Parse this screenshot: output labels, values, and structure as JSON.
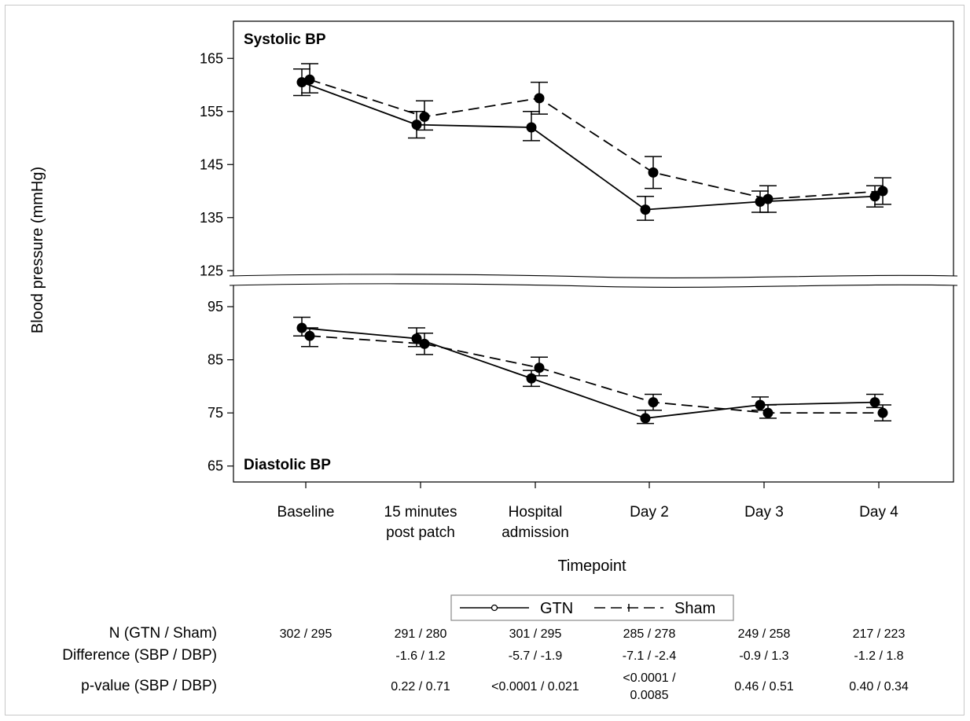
{
  "chart_data": {
    "type": "line",
    "x_title": "Timepoint",
    "y_title": "Blood pressure (mmHg)",
    "categories": [
      [
        "Baseline"
      ],
      [
        "15 minutes",
        "post patch"
      ],
      [
        "Hospital",
        "admission"
      ],
      [
        "Day 2"
      ],
      [
        "Day 3"
      ],
      [
        "Day 4"
      ]
    ],
    "panels": [
      {
        "title": "Systolic BP",
        "y_ticks": [
          125,
          135,
          145,
          155,
          165
        ],
        "ylim": [
          124,
          172
        ],
        "series": [
          {
            "name": "GTN",
            "style": "solid",
            "values": [
              160.5,
              152.5,
              152,
              136.5,
              138,
              139
            ],
            "lower": [
              158,
              150,
              149.5,
              134.5,
              136,
              137
            ],
            "upper": [
              163,
              155,
              155,
              139,
              140,
              141
            ]
          },
          {
            "name": "Sham",
            "style": "dashed",
            "values": [
              161,
              154,
              157.5,
              143.5,
              138.5,
              140
            ],
            "lower": [
              158.5,
              151.5,
              154.5,
              140.5,
              136,
              137.5
            ],
            "upper": [
              164,
              157,
              160.5,
              146.5,
              141,
              142.5
            ]
          }
        ]
      },
      {
        "title": "Diastolic BP",
        "y_ticks": [
          65,
          75,
          85,
          95
        ],
        "ylim": [
          62,
          99
        ],
        "series": [
          {
            "name": "GTN",
            "style": "solid",
            "values": [
              91,
              89,
              81.5,
              74,
              76.5,
              77
            ],
            "lower": [
              89.5,
              87.5,
              80,
              73,
              75.5,
              76
            ],
            "upper": [
              93,
              91,
              83,
              75.5,
              78,
              78.5
            ]
          },
          {
            "name": "Sham",
            "style": "dashed",
            "values": [
              89.5,
              88,
              83.5,
              77,
              75,
              75
            ],
            "lower": [
              87.5,
              86,
              82,
              75.5,
              74,
              73.5
            ],
            "upper": [
              91,
              90,
              85.5,
              78.5,
              76.5,
              76.5
            ]
          }
        ]
      }
    ],
    "legend": {
      "items": [
        "GTN",
        "Sham"
      ],
      "placement": "bottom-center"
    },
    "table": {
      "rows": [
        {
          "label": "N (GTN / Sham)",
          "cells": [
            [
              "302 / 295"
            ],
            [
              "291 / 280"
            ],
            [
              "301 / 295"
            ],
            [
              "285 / 278"
            ],
            [
              "249 / 258"
            ],
            [
              "217 / 223"
            ]
          ]
        },
        {
          "label": "Difference (SBP / DBP)",
          "cells": [
            [],
            [
              "-1.6 / 1.2"
            ],
            [
              "-5.7 / -1.9"
            ],
            [
              "-7.1 / -2.4"
            ],
            [
              "-0.9 / 1.3"
            ],
            [
              "-1.2 / 1.8"
            ]
          ]
        },
        {
          "label": "p-value (SBP / DBP)",
          "cells": [
            [],
            [
              "0.22 / 0.71"
            ],
            [
              "<0.0001 / 0.021"
            ],
            [
              "<0.0001 /",
              "0.0085"
            ],
            [
              "0.46 / 0.51"
            ],
            [
              "0.40 / 0.34"
            ]
          ]
        }
      ]
    }
  }
}
